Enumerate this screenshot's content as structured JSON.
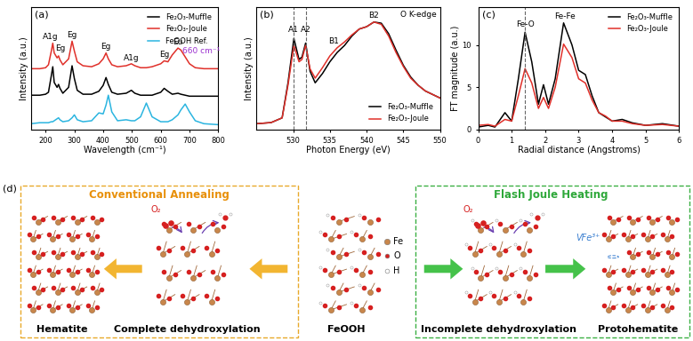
{
  "chart_data": [
    {
      "type": "line",
      "panel": "(a)",
      "x_label": "Wavelength (cm⁻¹)",
      "y_label": "Intensity (a.u.)",
      "x": [
        150,
        180,
        200,
        210,
        220,
        225,
        230,
        240,
        245,
        250,
        260,
        280,
        292,
        300,
        310,
        330,
        360,
        385,
        400,
        410,
        418,
        430,
        450,
        480,
        498,
        510,
        530,
        550,
        570,
        600,
        612,
        625,
        640,
        660,
        670,
        685,
        700,
        720,
        750,
        800
      ],
      "series": [
        {
          "name": "Fe₂O₃-Muffle",
          "color": "#000000",
          "values": [
            3.5,
            3.5,
            3.6,
            3.8,
            5.5,
            6.4,
            4.8,
            4.3,
            4.6,
            4.2,
            3.7,
            4.3,
            6.5,
            5.2,
            4.0,
            3.6,
            3.6,
            3.9,
            4.5,
            5.3,
            4.6,
            3.8,
            3.6,
            3.7,
            4.0,
            3.7,
            3.5,
            3.5,
            3.5,
            3.8,
            4.2,
            3.9,
            3.6,
            3.7,
            3.6,
            3.5,
            3.4,
            3.4,
            3.4,
            3.4
          ]
        },
        {
          "name": "Fe₂O₃-Joule",
          "color": "#e0302a",
          "values": [
            6.2,
            6.2,
            6.3,
            6.6,
            8.0,
            8.8,
            7.8,
            7.3,
            7.5,
            7.1,
            6.6,
            7.2,
            9.0,
            8.0,
            6.9,
            6.5,
            6.4,
            6.7,
            7.2,
            7.8,
            7.2,
            6.6,
            6.4,
            6.5,
            6.7,
            6.5,
            6.3,
            6.3,
            6.4,
            6.7,
            7.0,
            6.9,
            7.6,
            8.3,
            8.1,
            7.4,
            6.7,
            6.3,
            6.2,
            6.2
          ]
        },
        {
          "name": "FeOOH Ref.",
          "color": "#2bb5e0",
          "values": [
            0.6,
            0.7,
            0.7,
            0.7,
            0.8,
            0.8,
            0.9,
            1.1,
            1.2,
            1.0,
            0.8,
            0.9,
            1.2,
            1.5,
            1.0,
            0.8,
            0.9,
            1.7,
            1.6,
            2.5,
            3.5,
            1.8,
            0.9,
            1.0,
            0.9,
            0.9,
            1.3,
            2.7,
            1.3,
            0.8,
            0.8,
            0.8,
            1.0,
            1.5,
            2.0,
            2.6,
            1.8,
            0.9,
            0.6,
            0.5
          ]
        }
      ],
      "xlim": [
        150,
        800
      ],
      "xticks": [
        200,
        300,
        400,
        500,
        600,
        700,
        800
      ],
      "ylim": [
        0,
        12.5
      ],
      "tick_labels": "x",
      "legend": "upper right",
      "annotations": [
        {
          "text": "A1g",
          "x": 218,
          "y": 9.0
        },
        {
          "text": "Eg",
          "x": 250,
          "y": 7.9
        },
        {
          "text": "Eg",
          "x": 292,
          "y": 9.2
        },
        {
          "text": "Eg",
          "x": 410,
          "y": 8.0
        },
        {
          "text": "A1g",
          "x": 498,
          "y": 6.9
        },
        {
          "text": "Eg",
          "x": 612,
          "y": 7.2
        },
        {
          "text": "Eu",
          "x": 660,
          "y": 8.5
        },
        {
          "text": "660 cm⁻¹",
          "x": 740,
          "y": 7.6,
          "color": "#9b30d0"
        }
      ]
    },
    {
      "type": "line",
      "panel": "(b)",
      "x_label": "Photon Energy (eV)",
      "y_label": "Intensity (a.u.)",
      "x": [
        525,
        527,
        528.5,
        529.3,
        530.1,
        530.8,
        531.2,
        531.7,
        532.3,
        533,
        534,
        535,
        536,
        537,
        538,
        539,
        540,
        541,
        542,
        543,
        544,
        545,
        546,
        547,
        548,
        550
      ],
      "series": [
        {
          "name": "Fe₂O₃-Muffle",
          "color": "#000000",
          "values": [
            0.05,
            0.06,
            0.1,
            0.4,
            0.78,
            0.6,
            0.62,
            0.74,
            0.5,
            0.4,
            0.48,
            0.58,
            0.66,
            0.72,
            0.8,
            0.86,
            0.88,
            0.92,
            0.91,
            0.82,
            0.68,
            0.55,
            0.45,
            0.38,
            0.33,
            0.27
          ]
        },
        {
          "name": "Fe₂O₃-Joule",
          "color": "#e0302a",
          "values": [
            0.05,
            0.06,
            0.1,
            0.38,
            0.72,
            0.58,
            0.6,
            0.72,
            0.52,
            0.44,
            0.53,
            0.63,
            0.7,
            0.75,
            0.81,
            0.86,
            0.88,
            0.92,
            0.9,
            0.8,
            0.66,
            0.54,
            0.44,
            0.38,
            0.33,
            0.27
          ]
        }
      ],
      "xlim": [
        525,
        550
      ],
      "xticks": [
        530,
        535,
        540,
        545,
        550
      ],
      "ylim": [
        0,
        1.05
      ],
      "tick_labels": "x",
      "legend": "lower right",
      "annotations": [
        {
          "text": "O K-edge",
          "x": 547,
          "y": 0.95
        },
        {
          "text": "A1",
          "x": 530.1,
          "y": 0.82,
          "line_style": "dashed"
        },
        {
          "text": "A2",
          "x": 531.7,
          "y": 0.82,
          "line_style": "dashed"
        },
        {
          "text": "B1",
          "x": 535.5,
          "y": 0.72
        },
        {
          "text": "B2",
          "x": 541,
          "y": 0.94
        }
      ]
    },
    {
      "type": "line",
      "panel": "(c)",
      "x_label": "Radial distance (Angstroms)",
      "y_label": "FT magnitude (a.u.)",
      "x": [
        0,
        0.3,
        0.5,
        0.8,
        1.0,
        1.2,
        1.4,
        1.6,
        1.8,
        1.95,
        2.1,
        2.3,
        2.55,
        2.8,
        3.0,
        3.2,
        3.4,
        3.6,
        3.8,
        4.0,
        4.3,
        4.6,
        5.0,
        5.5,
        6
      ],
      "series": [
        {
          "name": "Fe₂O₃-Muffle",
          "color": "#000000",
          "values": [
            0.3,
            0.5,
            0.3,
            2.0,
            1.0,
            6.0,
            11.5,
            8.0,
            3.0,
            5.3,
            3.0,
            6.0,
            12.6,
            10.0,
            7.0,
            6.5,
            4.0,
            2.0,
            1.5,
            1.0,
            1.2,
            0.8,
            0.5,
            0.7,
            0.4
          ]
        },
        {
          "name": "Fe₂O₃-Joule",
          "color": "#e0302a",
          "values": [
            0.5,
            0.6,
            0.4,
            1.2,
            1.0,
            4.0,
            7.2,
            5.5,
            2.5,
            3.8,
            2.5,
            5.0,
            10.1,
            8.5,
            6.0,
            5.5,
            3.5,
            2.0,
            1.6,
            1.0,
            1.0,
            0.7,
            0.5,
            0.6,
            0.4
          ]
        }
      ],
      "xlim": [
        0,
        6
      ],
      "xticks": [
        0,
        1,
        2,
        3,
        4,
        5,
        6
      ],
      "ylim": [
        0,
        14.5
      ],
      "yticks": [
        0,
        5,
        10
      ],
      "legend": "upper right",
      "annotations": [
        {
          "text": "Fe-O",
          "x": 1.4,
          "y": 11.9,
          "line_style": "dashed"
        },
        {
          "text": "Fe-Fe",
          "x": 2.6,
          "y": 12.9
        }
      ]
    }
  ],
  "diagram": {
    "panel": "(d)",
    "left_box": {
      "title": "Conventional Annealing",
      "steps": [
        "Hematite",
        "Complete dehydroxylation"
      ]
    },
    "center": "FeOOH",
    "right_box": {
      "title": "Flash Joule Heating",
      "steps": [
        "Incomplete dehydroxylation",
        "Protohematite"
      ]
    },
    "reactant": "O₂",
    "vacancy": "VFe³⁺",
    "legend": [
      "Fe",
      "O",
      "H"
    ]
  }
}
